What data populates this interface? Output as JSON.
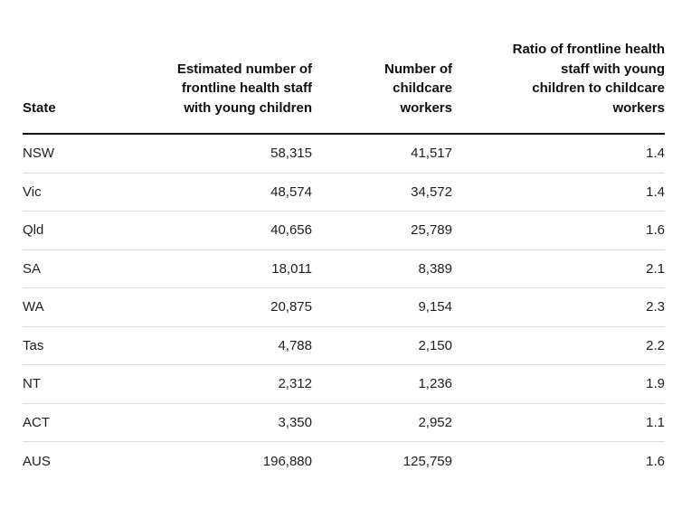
{
  "table": {
    "columns": [
      {
        "id": "state",
        "label": "State"
      },
      {
        "id": "staff",
        "label": "Estimated number of\nfrontline health staff\nwith young children"
      },
      {
        "id": "childcare",
        "label": "Number of\nchildcare\nworkers"
      },
      {
        "id": "ratio",
        "label": "Ratio of frontline health\nstaff with young\nchildren to childcare\nworkers"
      }
    ],
    "rows": [
      {
        "state": "NSW",
        "staff": "58,315",
        "childcare": "41,517",
        "ratio": "1.4"
      },
      {
        "state": "Vic",
        "staff": "48,574",
        "childcare": "34,572",
        "ratio": "1.4"
      },
      {
        "state": "Qld",
        "staff": "40,656",
        "childcare": "25,789",
        "ratio": "1.6"
      },
      {
        "state": "SA",
        "staff": "18,011",
        "childcare": "8,389",
        "ratio": "2.1"
      },
      {
        "state": "WA",
        "staff": "20,875",
        "childcare": "9,154",
        "ratio": "2.3"
      },
      {
        "state": "Tas",
        "staff": "4,788",
        "childcare": "2,150",
        "ratio": "2.2"
      },
      {
        "state": "NT",
        "staff": "2,312",
        "childcare": "1,236",
        "ratio": "1.9"
      },
      {
        "state": "ACT",
        "staff": "3,350",
        "childcare": "2,952",
        "ratio": "1.1"
      },
      {
        "state": "AUS",
        "staff": "196,880",
        "childcare": "125,759",
        "ratio": "1.6"
      }
    ]
  },
  "chart_data": {
    "type": "table",
    "columns": [
      "State",
      "Estimated number of frontline health staff with young children",
      "Number of childcare workers",
      "Ratio of frontline health staff with young children to childcare workers"
    ],
    "rows": [
      [
        "NSW",
        58315,
        41517,
        1.4
      ],
      [
        "Vic",
        48574,
        34572,
        1.4
      ],
      [
        "Qld",
        40656,
        25789,
        1.6
      ],
      [
        "SA",
        18011,
        8389,
        2.1
      ],
      [
        "WA",
        20875,
        9154,
        2.3
      ],
      [
        "Tas",
        4788,
        2150,
        2.2
      ],
      [
        "NT",
        2312,
        1236,
        1.9
      ],
      [
        "ACT",
        3350,
        2952,
        1.1
      ],
      [
        "AUS",
        196880,
        125759,
        1.6
      ]
    ]
  },
  "colors": {
    "background": "#ffffff",
    "text": "#1e1e1e",
    "header_text": "#111111",
    "header_rule": "#141414",
    "row_rule": "#dcdcdc"
  }
}
